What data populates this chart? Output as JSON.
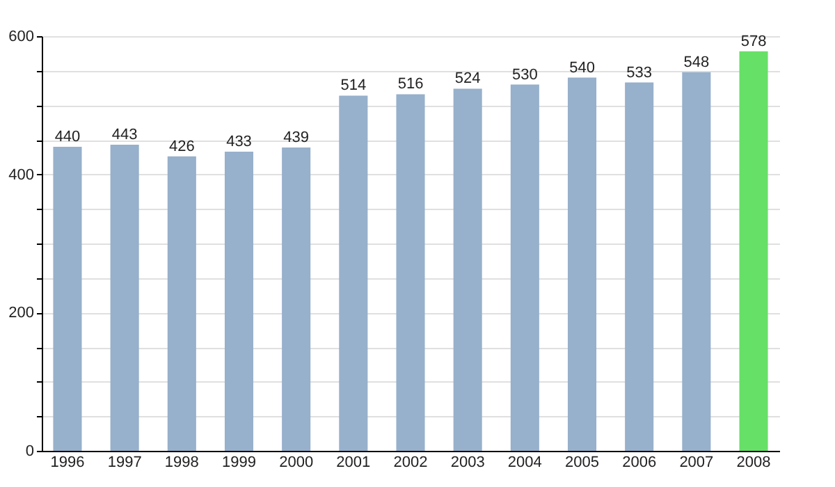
{
  "chart_data": {
    "type": "bar",
    "categories": [
      "1996",
      "1997",
      "1998",
      "1999",
      "2000",
      "2001",
      "2002",
      "2003",
      "2004",
      "2005",
      "2006",
      "2007",
      "2008"
    ],
    "values": [
      440,
      443,
      426,
      433,
      439,
      514,
      516,
      524,
      530,
      540,
      533,
      548,
      578
    ],
    "colors": [
      "#97b0cb",
      "#97b0cb",
      "#97b0cb",
      "#97b0cb",
      "#97b0cb",
      "#97b0cb",
      "#97b0cb",
      "#97b0cb",
      "#97b0cb",
      "#97b0cb",
      "#97b0cb",
      "#97b0cb",
      "#66e066"
    ],
    "ylim": [
      0,
      600
    ],
    "yticks": [
      0,
      {
        "value": 50,
        "label": null
      },
      {
        "value": 100,
        "label": null
      },
      {
        "value": 150,
        "label": null
      },
      200,
      {
        "value": 250,
        "label": null
      },
      {
        "value": 300,
        "label": null
      },
      {
        "value": 350,
        "label": null
      },
      400,
      {
        "value": 450,
        "label": null
      },
      {
        "value": 500,
        "label": null
      },
      {
        "value": 550,
        "label": null
      },
      600
    ],
    "grid": true,
    "data_labels": true
  }
}
